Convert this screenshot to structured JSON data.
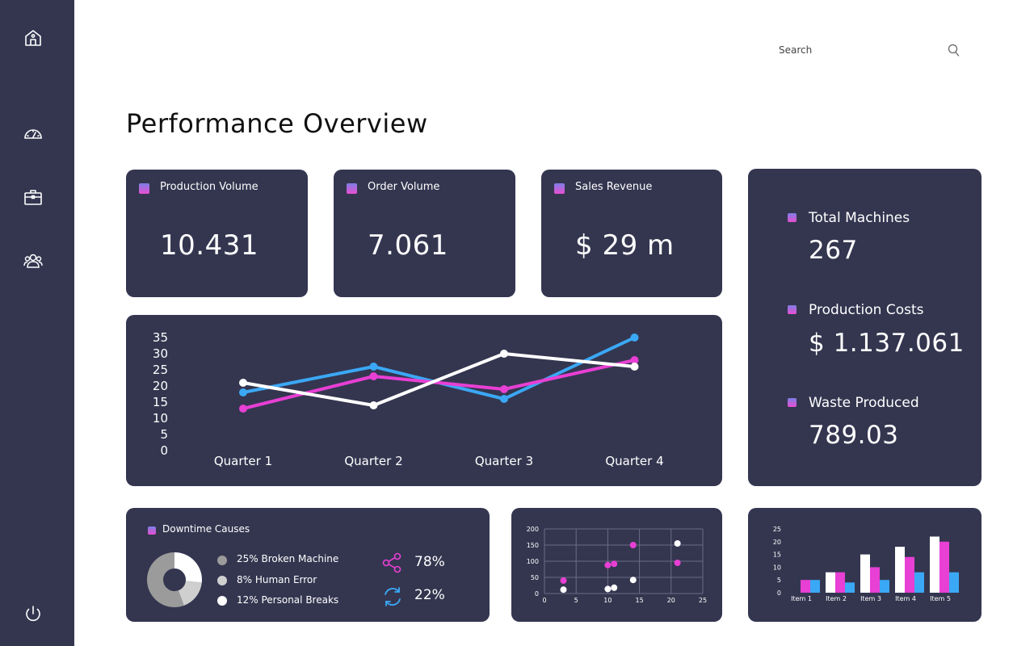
{
  "sidebar": {
    "items": [
      {
        "icon": "home-icon"
      },
      {
        "icon": "speedometer-icon"
      },
      {
        "icon": "briefcase-icon"
      },
      {
        "icon": "users-icon"
      }
    ],
    "power_icon": "power-icon"
  },
  "search": {
    "placeholder": "Search"
  },
  "page": {
    "title": "Performance Overview"
  },
  "kpis": [
    {
      "label": "Production Volume",
      "value": "10.431"
    },
    {
      "label": "Order Volume",
      "value": "7.061"
    },
    {
      "label": "Sales Revenue",
      "value": "$ 29 m"
    }
  ],
  "stats": [
    {
      "label": "Total Machines",
      "value": "267"
    },
    {
      "label": "Production Costs",
      "value": "$ 1.137.061"
    },
    {
      "label": "Waste Produced",
      "value": "789.03"
    }
  ],
  "downtime": {
    "title": "Downtime Causes",
    "legend": [
      {
        "label": "25% Broken Machine",
        "color": "#9b9b9b"
      },
      {
        "label": "8% Human Error",
        "color": "#cfcfcf"
      },
      {
        "label": "12% Personal Breaks",
        "color": "#ffffff"
      }
    ],
    "metrics": [
      {
        "icon": "share-icon",
        "value": "78%",
        "color": "#e83fd4"
      },
      {
        "icon": "refresh-icon",
        "value": "22%",
        "color": "#3ba8f5"
      }
    ]
  },
  "colors": {
    "sidebar": "#343650",
    "card": "#343650",
    "pink": "#e83fd4",
    "blue": "#3ba8f5",
    "white": "#ffffff"
  },
  "chart_data": [
    {
      "type": "line",
      "title": "",
      "categories": [
        "Quarter 1",
        "Quarter 2",
        "Quarter 3",
        "Quarter 4"
      ],
      "ylim": [
        0,
        35
      ],
      "yticks": [
        0,
        5,
        10,
        15,
        20,
        25,
        30,
        35
      ],
      "series": [
        {
          "name": "blue",
          "color": "#3ba8f5",
          "values": [
            18,
            26,
            16,
            35
          ]
        },
        {
          "name": "pink",
          "color": "#e83fd4",
          "values": [
            13,
            23,
            19,
            28
          ]
        },
        {
          "name": "white",
          "color": "#ffffff",
          "values": [
            21,
            14,
            30,
            26
          ]
        }
      ]
    },
    {
      "type": "scatter",
      "xlim": [
        0,
        25
      ],
      "ylim": [
        0,
        200
      ],
      "xticks": [
        0,
        5,
        10,
        15,
        20,
        25
      ],
      "yticks": [
        0,
        50,
        100,
        150,
        200
      ],
      "series": [
        {
          "name": "pink",
          "color": "#e83fd4",
          "points": [
            [
              3,
              40
            ],
            [
              10,
              88
            ],
            [
              11,
              92
            ],
            [
              14,
              150
            ],
            [
              21,
              95
            ]
          ]
        },
        {
          "name": "white",
          "color": "#ffffff",
          "points": [
            [
              3,
              12
            ],
            [
              10,
              14
            ],
            [
              11,
              18
            ],
            [
              14,
              42
            ],
            [
              21,
              155
            ]
          ]
        }
      ]
    },
    {
      "type": "bar",
      "categories": [
        "Item 1",
        "Item 2",
        "Item 3",
        "Item 4",
        "Item 5"
      ],
      "ylim": [
        0,
        25
      ],
      "yticks": [
        0,
        5,
        10,
        15,
        20,
        25
      ],
      "series": [
        {
          "name": "s1",
          "color": "#e83fd4",
          "values": [
            5,
            8,
            10,
            14,
            20
          ]
        },
        {
          "name": "s2",
          "color": "#3ba8f5",
          "values": [
            5,
            4,
            5,
            8,
            8
          ]
        },
        {
          "name": "s3",
          "color": "#ffffff",
          "values": [
            0,
            8,
            15,
            18,
            22
          ]
        }
      ]
    },
    {
      "type": "pie",
      "slices": [
        {
          "label": "Broken Machine",
          "value": 25,
          "color": "#9b9b9b"
        },
        {
          "label": "Human Error",
          "value": 8,
          "color": "#cfcfcf"
        },
        {
          "label": "Personal Breaks",
          "value": 12,
          "color": "#ffffff"
        }
      ]
    }
  ]
}
